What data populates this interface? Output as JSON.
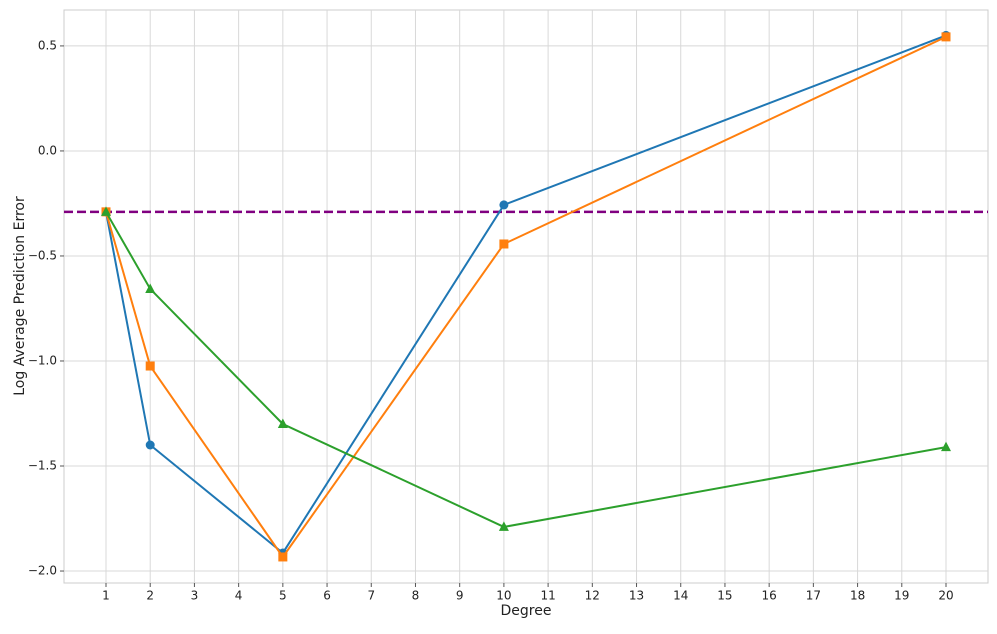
{
  "chart_data": {
    "type": "line",
    "x_label": "Degree",
    "y_label": "Log Average Prediction Error",
    "x": [
      1,
      2,
      5,
      10,
      20
    ],
    "series": [
      {
        "color": "#1f77b4",
        "marker": "circle",
        "values": [
          -0.29,
          -1.4,
          -1.914,
          -0.257,
          0.55
        ]
      },
      {
        "color": "#ff7f0e",
        "marker": "square",
        "values": [
          -0.29,
          -1.024,
          -1.933,
          -0.443,
          0.543
        ]
      },
      {
        "color": "#2ca02c",
        "marker": "triangle",
        "values": [
          -0.29,
          -0.657,
          -1.3,
          -1.79,
          -1.41
        ]
      }
    ],
    "hline": {
      "value": -0.29,
      "color": "#800080",
      "style": "dashed"
    },
    "xlim": [
      0.05,
      20.95
    ],
    "ylim": [
      -2.057,
      0.671
    ],
    "xticks": [
      1,
      2,
      3,
      4,
      5,
      6,
      7,
      8,
      9,
      10,
      11,
      12,
      13,
      14,
      15,
      16,
      17,
      18,
      19,
      20
    ],
    "yticks": [
      {
        "value": -2.0,
        "label": "−2.0"
      },
      {
        "value": -1.5,
        "label": "−1.5"
      },
      {
        "value": -1.0,
        "label": "−1.0"
      },
      {
        "value": -0.5,
        "label": "−0.5"
      },
      {
        "value": 0.0,
        "label": "0.0"
      },
      {
        "value": 0.5,
        "label": "0.5"
      }
    ],
    "grid": true
  }
}
